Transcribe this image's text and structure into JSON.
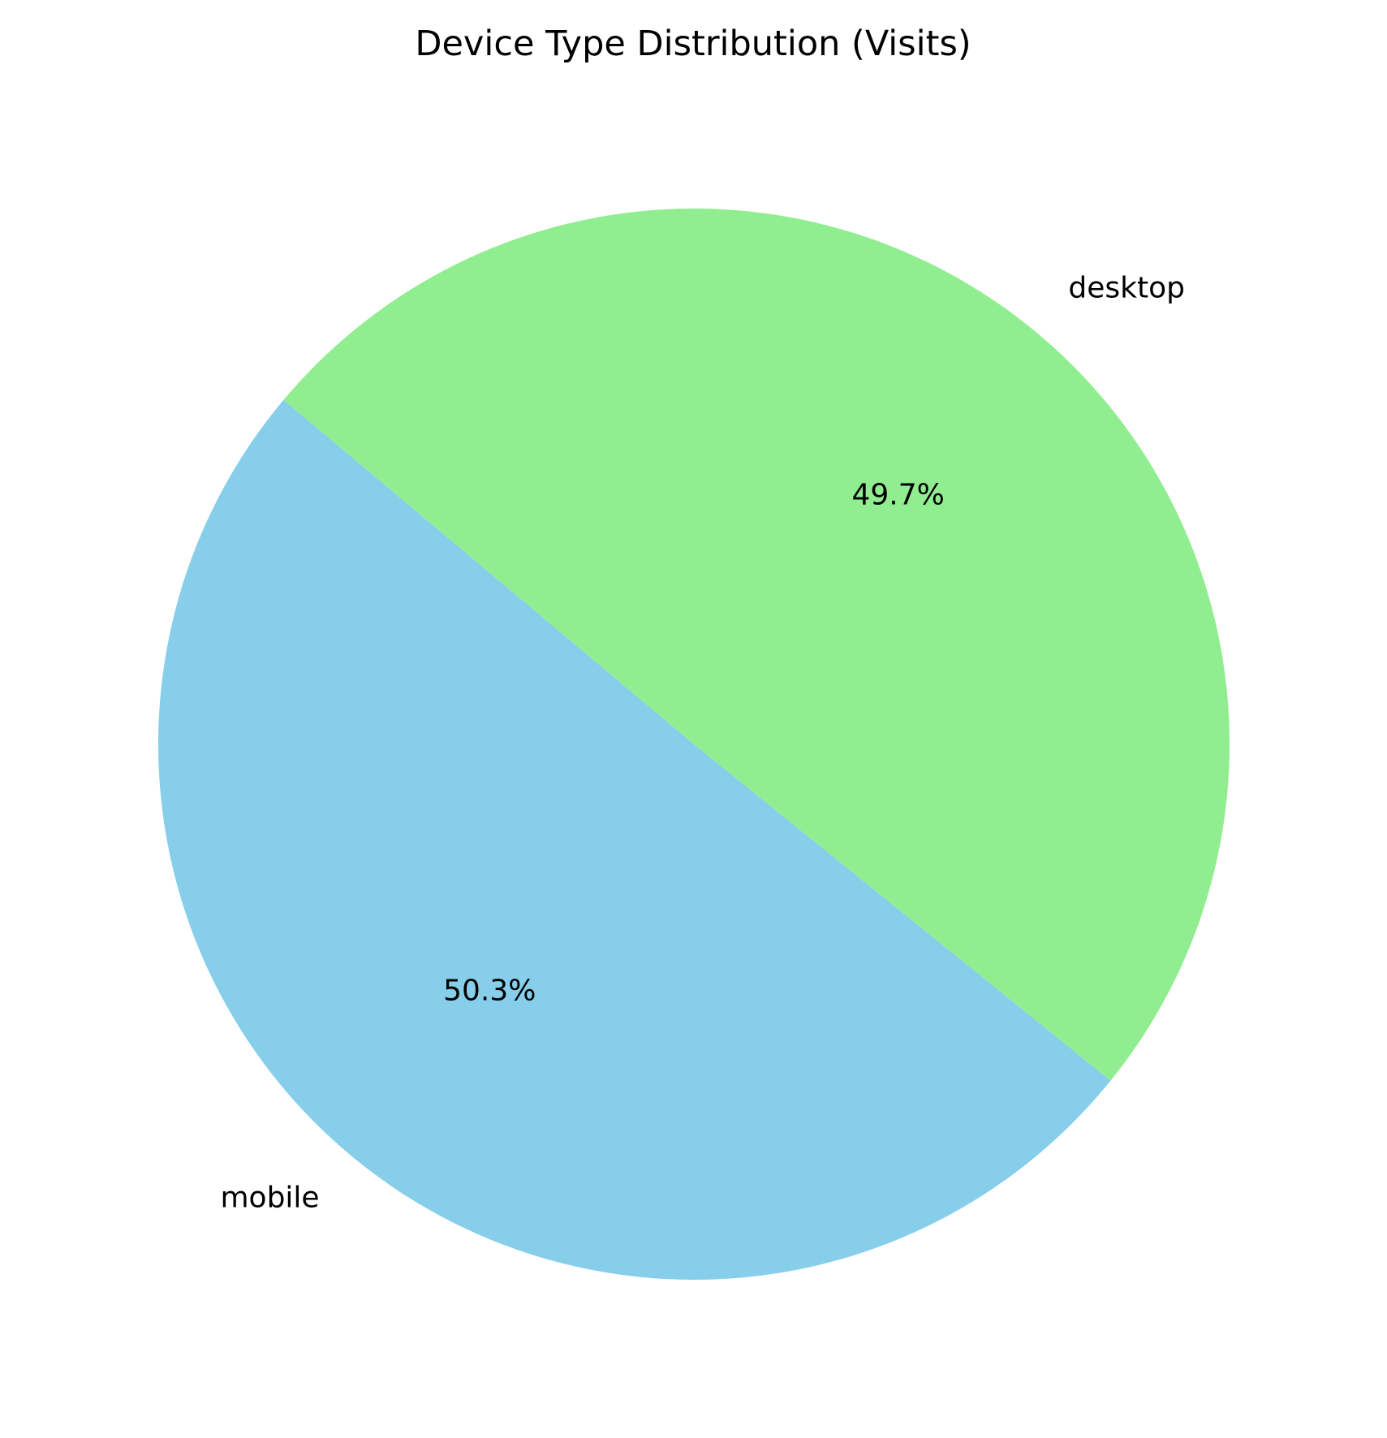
{
  "chart_data": {
    "type": "pie",
    "title": "Device Type Distribution (Visits)",
    "slices": [
      {
        "label": "mobile",
        "value": 50.3,
        "pct_label": "50.3%",
        "color": "#87CEEB"
      },
      {
        "label": "desktop",
        "value": 49.7,
        "pct_label": "49.7%",
        "color": "#90EE90"
      }
    ],
    "start_angle_deg": 140,
    "direction": "counterclockwise"
  }
}
